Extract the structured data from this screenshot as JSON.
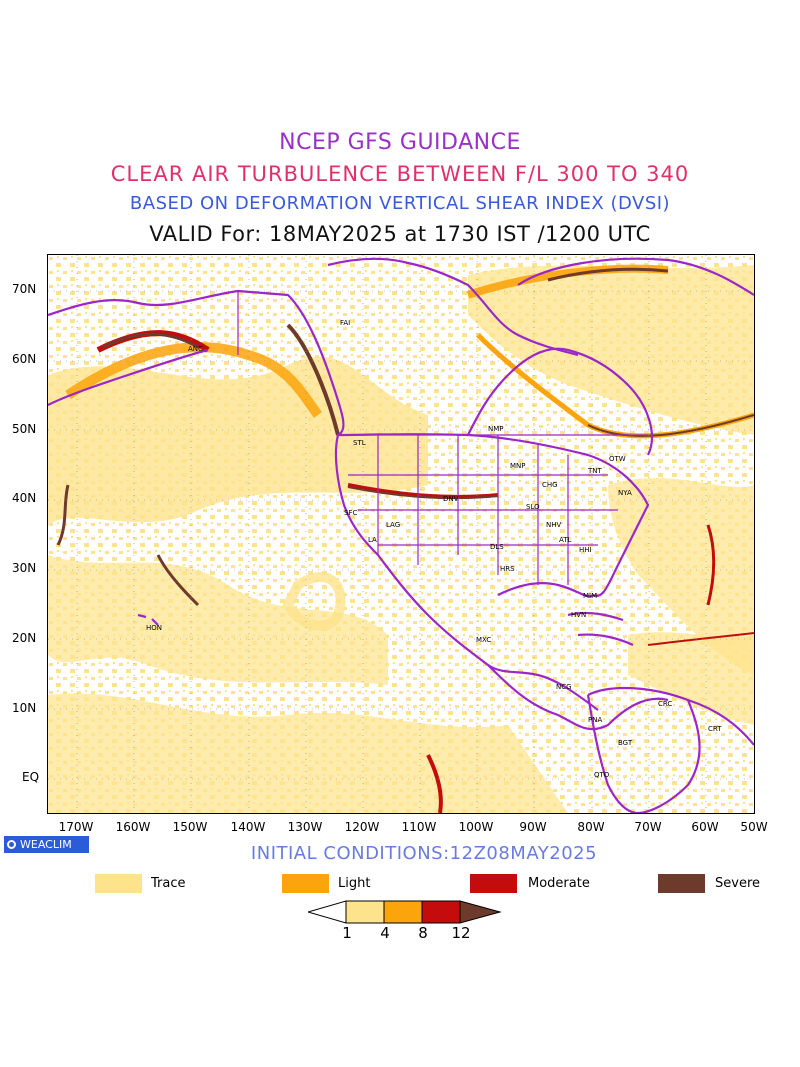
{
  "titles": {
    "line1": "NCEP GFS GUIDANCE",
    "line2": "CLEAR AIR TURBULENCE BETWEEN F/L 300 TO 340",
    "line3": "BASED ON DEFORMATION VERTICAL SHEAR INDEX (DVSI)",
    "line4": "VALID For: 18MAY2025 at 1730 IST /1200 UTC"
  },
  "latitude_labels": [
    "70N",
    "60N",
    "50N",
    "40N",
    "30N",
    "20N",
    "10N",
    "EQ"
  ],
  "longitude_labels": [
    "170W",
    "160W",
    "150W",
    "140W",
    "130W",
    "120W",
    "110W",
    "100W",
    "90W",
    "80W",
    "70W",
    "60W",
    "50W"
  ],
  "stations": [
    "ANC",
    "FAI",
    "STL",
    "NMP",
    "MNP",
    "CHG",
    "TNT",
    "OTW",
    "NYA",
    "DNV",
    "SFC",
    "LAG",
    "LA",
    "SLO",
    "NHV",
    "ATL",
    "DLS",
    "HHI",
    "HRS",
    "MIM",
    "HVN",
    "HON",
    "MXC",
    "NCG",
    "PNA",
    "BGT",
    "CRC",
    "CRT",
    "QTO"
  ],
  "logo": "WEACLIM",
  "initial_conditions": "INITIAL CONDITIONS:12Z08MAY2025",
  "legend": [
    {
      "label": "Trace",
      "color": "#fde48c"
    },
    {
      "label": "Light",
      "color": "#fca40c"
    },
    {
      "label": "Moderate",
      "color": "#c40c0c"
    },
    {
      "label": "Severe",
      "color": "#6e3a2c"
    }
  ],
  "colorbar": {
    "ticks": [
      "1",
      "4",
      "8",
      "12"
    ],
    "colors": [
      "#ffffff",
      "#fde48c",
      "#fca40c",
      "#c40c0c",
      "#6e3a2c"
    ]
  },
  "colors": {
    "coast": "#9c27c8",
    "trace": "#fde48c",
    "light": "#fca40c",
    "moderate": "#c40c0c",
    "severe": "#6e3a2c"
  }
}
